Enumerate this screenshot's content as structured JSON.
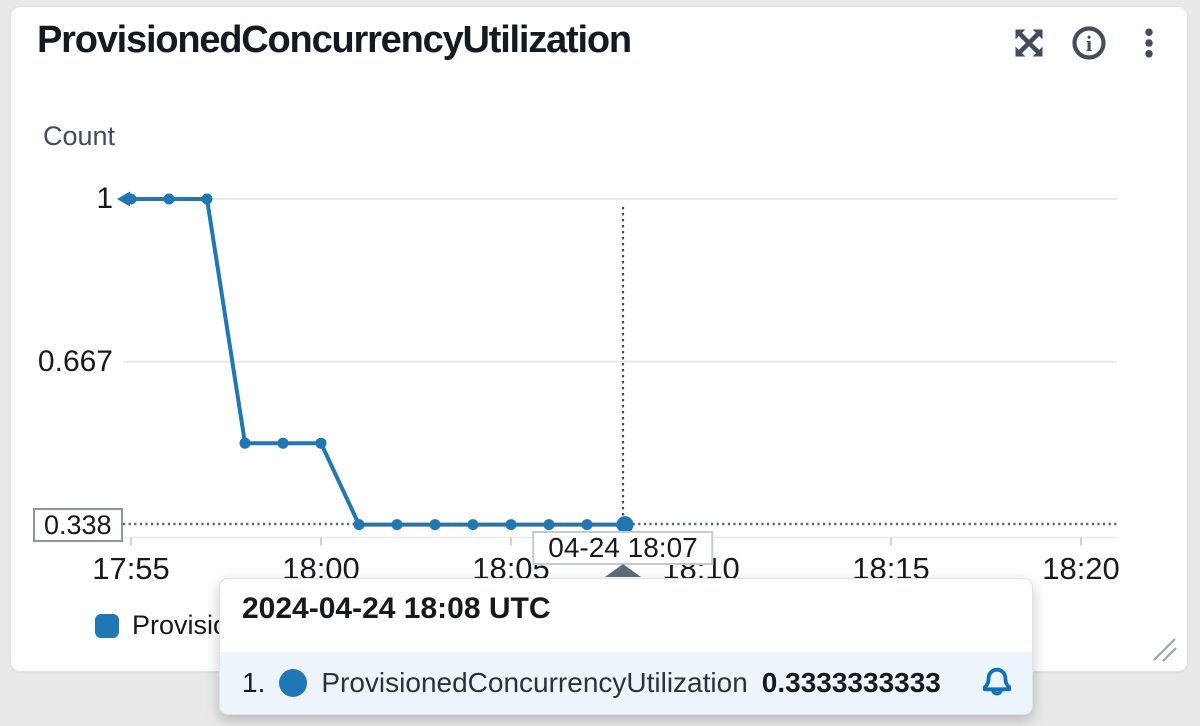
{
  "card": {
    "title": "ProvisionedConcurrencyUtilization"
  },
  "toolbar": {
    "expand_icon": "expand-arrows",
    "info_icon": "info-circle",
    "menu_icon": "kebab-vertical-dots"
  },
  "chart_data": {
    "type": "line",
    "title": "ProvisionedConcurrencyUtilization",
    "unit_label": "Count",
    "x": [
      "17:55",
      "17:56",
      "17:57",
      "17:58",
      "17:59",
      "18:00",
      "18:01",
      "18:02",
      "18:03",
      "18:04",
      "18:05",
      "18:06",
      "18:07",
      "18:08"
    ],
    "values": [
      1,
      1,
      1,
      0.5,
      0.5,
      0.5,
      0.3333333333,
      0.3333333333,
      0.3333333333,
      0.3333333333,
      0.3333333333,
      0.3333333333,
      0.3333333333,
      0.3333333333
    ],
    "series": [
      {
        "name": "ProvisionedConcurrencyUtilization",
        "color": "#1f77b4"
      }
    ],
    "x_ticks": [
      "17:55",
      "18:00",
      "18:05",
      "18:10",
      "18:15",
      "18:20"
    ],
    "y_ticks": [
      "1",
      "0.667"
    ],
    "ylim": [
      0.31,
      1.02
    ],
    "grid": "horizontal",
    "legend_position": "bottom-left",
    "hovered_index": 13,
    "data_continues_left": true
  },
  "cursor": {
    "time_label": "04-24 18:07",
    "y_value_label": "0.338"
  },
  "tooltip": {
    "timestamp": "2024-04-24 18:08 UTC",
    "rows": [
      {
        "rank": "1.",
        "series": "ProvisionedConcurrencyUtilization",
        "value": "0.3333333333"
      }
    ]
  },
  "legend": {
    "label": "ProvisionedConcurrencyUtilization"
  },
  "colors": {
    "series": "#1f77b4",
    "grid": "#e7e9ea",
    "axis": "#ccd2d6",
    "hover_line": "#596673",
    "crosshair": "#454c54",
    "icon": "#414d5c",
    "bell": "#0e72b8",
    "resize": "#9aa5ad",
    "tooltip_row_bg": "#eef4fb"
  }
}
